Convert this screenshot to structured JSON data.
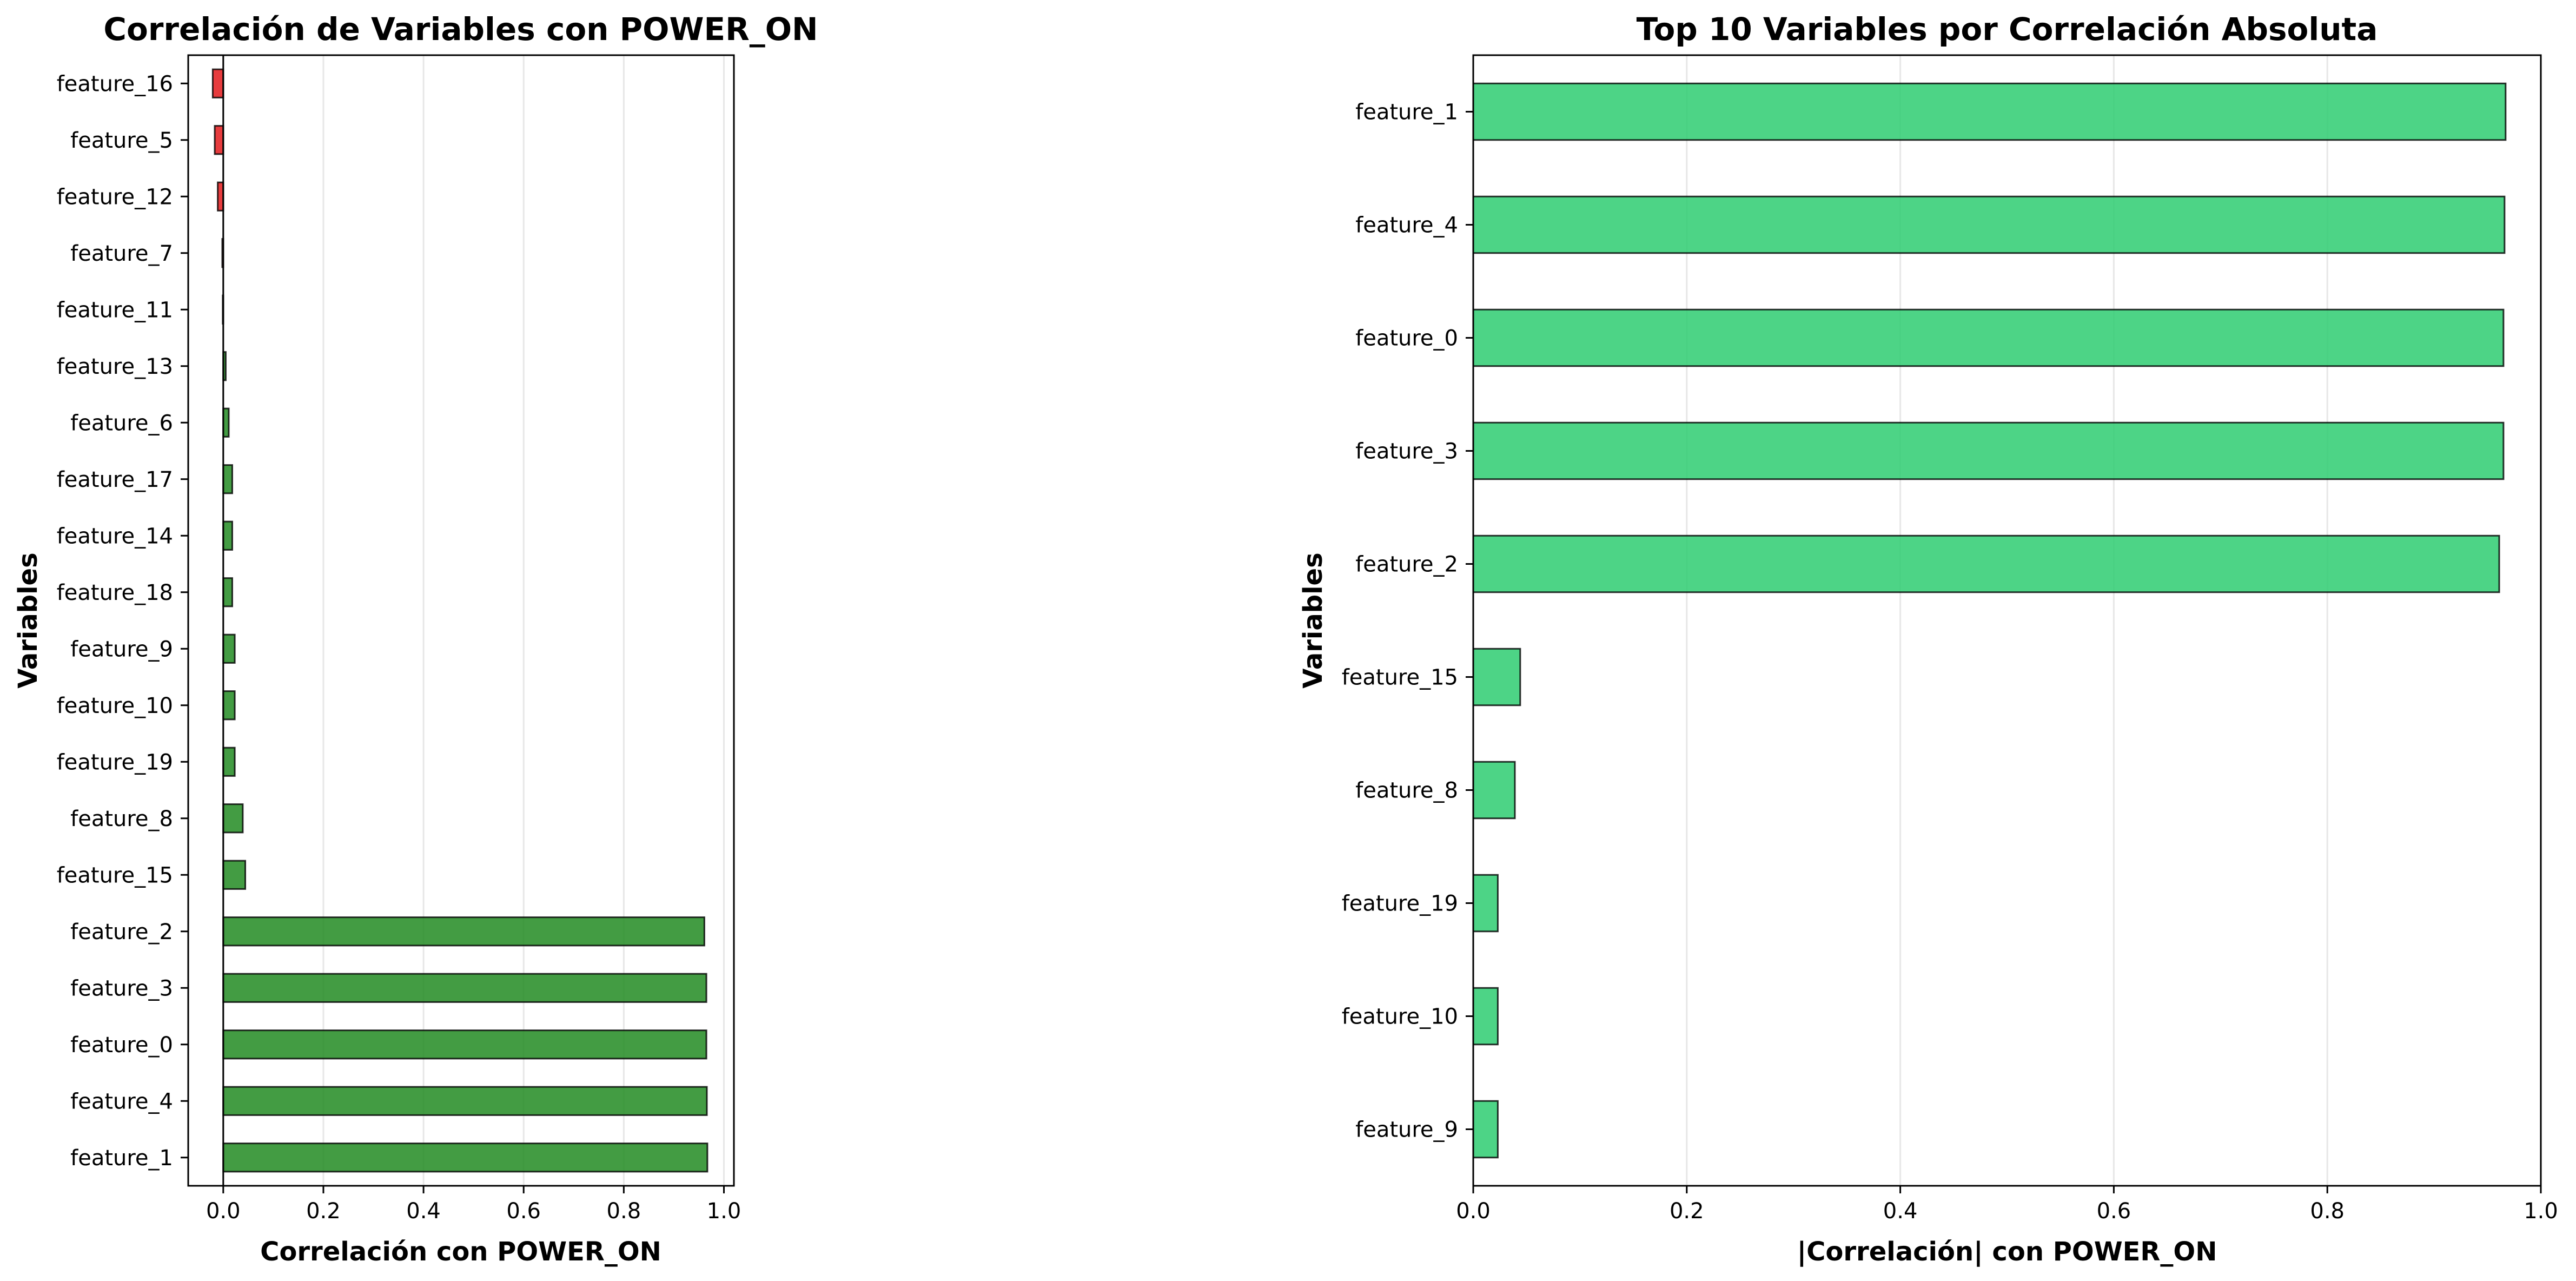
{
  "chart_data": [
    {
      "type": "bar",
      "orientation": "horizontal",
      "title": "Correlación de Variables con POWER_ON",
      "xlabel": "Correlación con POWER_ON",
      "ylabel": "Variables",
      "xlim": [
        -0.07,
        1.02
      ],
      "xticks": [
        "0.0",
        "0.2",
        "0.4",
        "0.6",
        "0.8",
        "1.0"
      ],
      "xtick_values": [
        0.0,
        0.2,
        0.4,
        0.6,
        0.8,
        1.0
      ],
      "grid": "x",
      "colors": {
        "positive": "#228B22",
        "negative": "#E31A1C"
      },
      "categories": [
        "feature_16",
        "feature_5",
        "feature_12",
        "feature_7",
        "feature_11",
        "feature_13",
        "feature_6",
        "feature_17",
        "feature_14",
        "feature_18",
        "feature_9",
        "feature_10",
        "feature_19",
        "feature_8",
        "feature_15",
        "feature_2",
        "feature_3",
        "feature_0",
        "feature_4",
        "feature_1"
      ],
      "values": [
        -0.021,
        -0.017,
        -0.011,
        -0.002,
        -0.001,
        0.005,
        0.011,
        0.018,
        0.018,
        0.018,
        0.023,
        0.023,
        0.023,
        0.039,
        0.044,
        0.961,
        0.965,
        0.965,
        0.966,
        0.967
      ]
    },
    {
      "type": "bar",
      "orientation": "horizontal",
      "title": "Top 10 Variables por Correlación Absoluta",
      "xlabel": "|Correlación| con POWER_ON",
      "ylabel": "Variables",
      "xlim": [
        0.0,
        1.0
      ],
      "xticks": [
        "0.0",
        "0.2",
        "0.4",
        "0.6",
        "0.8",
        "1.0"
      ],
      "xtick_values": [
        0.0,
        0.2,
        0.4,
        0.6,
        0.8,
        1.0
      ],
      "grid": "x",
      "colors": {
        "bar": "#2ECC71"
      },
      "categories": [
        "feature_1",
        "feature_4",
        "feature_0",
        "feature_3",
        "feature_2",
        "feature_15",
        "feature_8",
        "feature_19",
        "feature_10",
        "feature_9"
      ],
      "values": [
        0.967,
        0.966,
        0.965,
        0.965,
        0.961,
        0.044,
        0.039,
        0.023,
        0.023,
        0.023
      ]
    }
  ]
}
